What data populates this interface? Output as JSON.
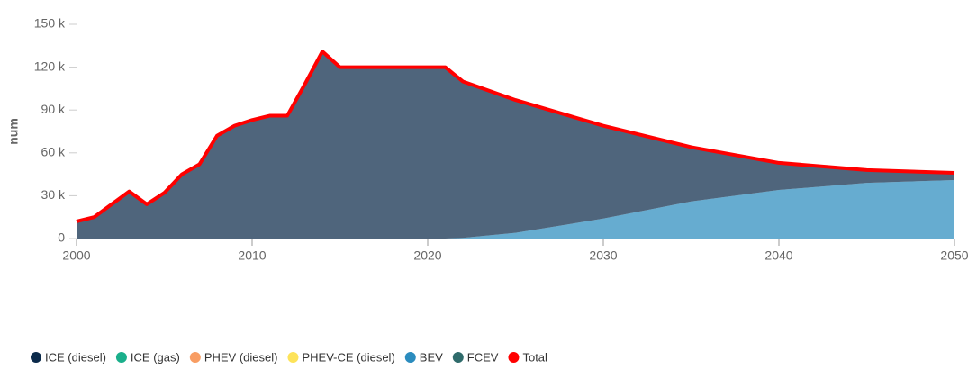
{
  "chart_data": {
    "type": "area",
    "y_label": "num",
    "x": [
      2000,
      2001,
      2002,
      2003,
      2004,
      2005,
      2006,
      2007,
      2008,
      2009,
      2010,
      2011,
      2012,
      2013,
      2014,
      2015,
      2016,
      2017,
      2018,
      2019,
      2020,
      2021,
      2022,
      2025,
      2030,
      2035,
      2040,
      2045,
      2050
    ],
    "series": [
      {
        "name": "ICE (diesel)",
        "color": "#0b2a4a",
        "values": [
          12000,
          15000,
          24000,
          33000,
          24000,
          32000,
          45000,
          52000,
          72000,
          79000,
          83000,
          86000,
          86000,
          108000,
          131000,
          120000,
          120000,
          120000,
          120000,
          120000,
          120000,
          120000,
          109500,
          93000,
          65000,
          38000,
          19000,
          9000,
          5000
        ]
      },
      {
        "name": "ICE (gas)",
        "color": "#1aaf8b",
        "values": [
          0,
          0,
          0,
          0,
          0,
          0,
          0,
          0,
          0,
          0,
          0,
          0,
          0,
          0,
          0,
          0,
          0,
          0,
          0,
          0,
          0,
          0,
          0,
          0,
          0,
          0,
          0,
          0,
          0
        ]
      },
      {
        "name": "PHEV (diesel)",
        "color": "#f89d63",
        "values": [
          0,
          0,
          0,
          0,
          0,
          0,
          0,
          0,
          0,
          0,
          0,
          0,
          0,
          0,
          0,
          0,
          0,
          0,
          0,
          0,
          0,
          0,
          0,
          0,
          0,
          0,
          0,
          0,
          0
        ]
      },
      {
        "name": "PHEV-CE (diesel)",
        "color": "#fde35a",
        "values": [
          0,
          0,
          0,
          0,
          0,
          0,
          0,
          0,
          0,
          0,
          0,
          0,
          0,
          0,
          0,
          0,
          0,
          0,
          0,
          0,
          0,
          0,
          0,
          0,
          0,
          0,
          0,
          0,
          0
        ]
      },
      {
        "name": "BEV",
        "color": "#2b8cbe",
        "values": [
          0,
          0,
          0,
          0,
          0,
          0,
          0,
          0,
          0,
          0,
          0,
          0,
          0,
          0,
          0,
          0,
          0,
          0,
          0,
          0,
          0,
          0,
          500,
          4000,
          14000,
          26000,
          34000,
          39000,
          41000
        ]
      },
      {
        "name": "FCEV",
        "color": "#2f6b6b",
        "values": [
          0,
          0,
          0,
          0,
          0,
          0,
          0,
          0,
          0,
          0,
          0,
          0,
          0,
          0,
          0,
          0,
          0,
          0,
          0,
          0,
          0,
          0,
          0,
          0,
          0,
          0,
          0,
          0,
          0
        ]
      },
      {
        "name": "Total",
        "color": "#ff0000",
        "line": true,
        "values": [
          12000,
          15000,
          24000,
          33000,
          24000,
          32000,
          45000,
          52000,
          72000,
          79000,
          83000,
          86000,
          86000,
          108000,
          131000,
          120000,
          120000,
          120000,
          120000,
          120000,
          120000,
          120000,
          110000,
          97000,
          79000,
          64000,
          53000,
          48000,
          46000
        ]
      }
    ],
    "xlim": [
      2000,
      2050
    ],
    "xticks": [
      2000,
      2010,
      2020,
      2030,
      2040,
      2050
    ],
    "ylim": [
      0,
      150000
    ],
    "yticks": [
      0,
      {
        "value": 30000,
        "label": "30 k"
      },
      {
        "value": 60000,
        "label": "60 k"
      },
      {
        "value": 90000,
        "label": "90 k"
      },
      {
        "value": 120000,
        "label": "120 k"
      },
      {
        "value": 150000,
        "label": "150 k"
      }
    ]
  }
}
